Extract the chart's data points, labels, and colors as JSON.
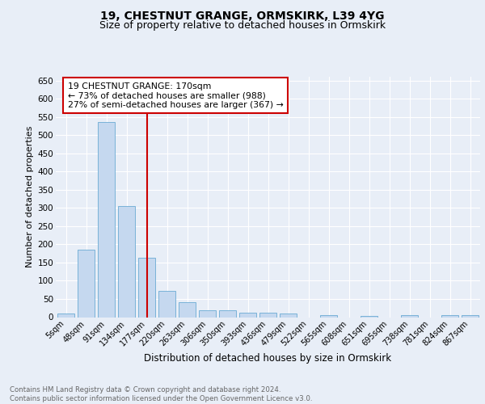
{
  "title1": "19, CHESTNUT GRANGE, ORMSKIRK, L39 4YG",
  "title2": "Size of property relative to detached houses in Ormskirk",
  "xlabel": "Distribution of detached houses by size in Ormskirk",
  "ylabel": "Number of detached properties",
  "bar_labels": [
    "5sqm",
    "48sqm",
    "91sqm",
    "134sqm",
    "177sqm",
    "220sqm",
    "263sqm",
    "306sqm",
    "350sqm",
    "393sqm",
    "436sqm",
    "479sqm",
    "522sqm",
    "565sqm",
    "608sqm",
    "651sqm",
    "695sqm",
    "738sqm",
    "781sqm",
    "824sqm",
    "867sqm"
  ],
  "bar_values": [
    10,
    185,
    535,
    305,
    163,
    73,
    41,
    18,
    18,
    12,
    12,
    10,
    0,
    6,
    0,
    4,
    0,
    5,
    0,
    5,
    5
  ],
  "bar_color": "#c5d8ef",
  "bar_edge_color": "#6aaad4",
  "vline_color": "#cc0000",
  "annotation_text": "19 CHESTNUT GRANGE: 170sqm\n← 73% of detached houses are smaller (988)\n27% of semi-detached houses are larger (367) →",
  "annotation_box_color": "#ffffff",
  "annotation_box_edge_color": "#cc0000",
  "ylim": [
    0,
    660
  ],
  "yticks": [
    0,
    50,
    100,
    150,
    200,
    250,
    300,
    350,
    400,
    450,
    500,
    550,
    600,
    650
  ],
  "footer_text": "Contains HM Land Registry data © Crown copyright and database right 2024.\nContains public sector information licensed under the Open Government Licence v3.0.",
  "bg_color": "#e8eef7",
  "plot_bg_color": "#e8eef7",
  "title_fontsize": 10,
  "subtitle_fontsize": 9,
  "ylabel_fontsize": 8,
  "xlabel_fontsize": 8.5
}
